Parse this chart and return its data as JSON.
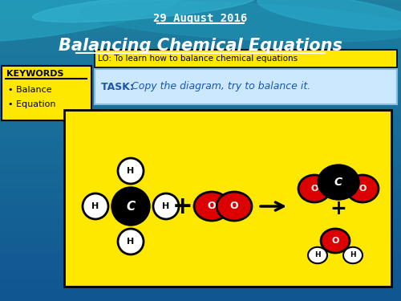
{
  "date_text": "29 August 2016",
  "title_text": "Balancing Chemical Equations",
  "lo_text": "LO: To learn how to balance chemical equations",
  "task_bold": "TASK: ",
  "task_rest": "Copy the diagram, try to balance it.",
  "keywords_title": "KEYWORDS",
  "keywords": [
    "Balance",
    "Equation"
  ],
  "yellow_bg": "#FFE800",
  "task_bg": "#cce8ff",
  "white": "#ffffff",
  "black": "#000000",
  "red": "#dd0000",
  "wave_color1": "#2a9db8",
  "wave_color2": "#1e8aa8",
  "bg_color_top": "#1e7fa0",
  "bg_color_bot": "#1560a0"
}
